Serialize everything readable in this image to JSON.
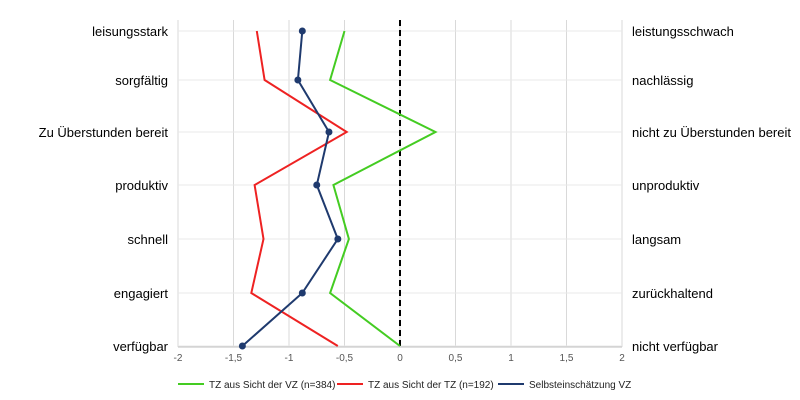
{
  "chart_data": {
    "type": "line",
    "orientation": "horizontal-profile",
    "left_labels": [
      "leisungsstark",
      "sorgfältig",
      "Zu Überstunden bereit",
      "produktiv",
      "schnell",
      "engagiert",
      "verfügbar"
    ],
    "right_labels": [
      "leistungsschwach",
      "nachlässig",
      "nicht zu Überstunden bereit",
      "unproduktiv",
      "langsam",
      "zurückhaltend",
      "nicht verfügbar"
    ],
    "xlim": [
      -2,
      2
    ],
    "x_ticks": [
      "-2",
      "-1,5",
      "-1",
      "-0,5",
      "0",
      "0,5",
      "1",
      "1,5",
      "2"
    ],
    "x_tick_values": [
      -2,
      -1.5,
      -1,
      -0.5,
      0,
      0.5,
      1,
      1.5,
      2
    ],
    "reference_line": {
      "x": 0,
      "style": "dashed"
    },
    "grid": true,
    "legend_position": "bottom",
    "series": [
      {
        "name": "TZ aus Sicht der VZ (n=384)",
        "color": "#44cc22",
        "markers": false,
        "values": [
          -0.5,
          -0.63,
          0.32,
          -0.6,
          -0.46,
          -0.63,
          0.0
        ]
      },
      {
        "name": "TZ aus Sicht der TZ (n=192)",
        "color": "#ee2222",
        "markers": false,
        "values": [
          -1.29,
          -1.22,
          -0.48,
          -1.31,
          -1.23,
          -1.34,
          -0.56
        ]
      },
      {
        "name": "Selbsteinschätzung VZ",
        "color": "#1f3a6e",
        "markers": true,
        "values": [
          -0.88,
          -0.92,
          -0.64,
          -0.75,
          -0.56,
          -0.88,
          -1.42
        ]
      }
    ]
  }
}
